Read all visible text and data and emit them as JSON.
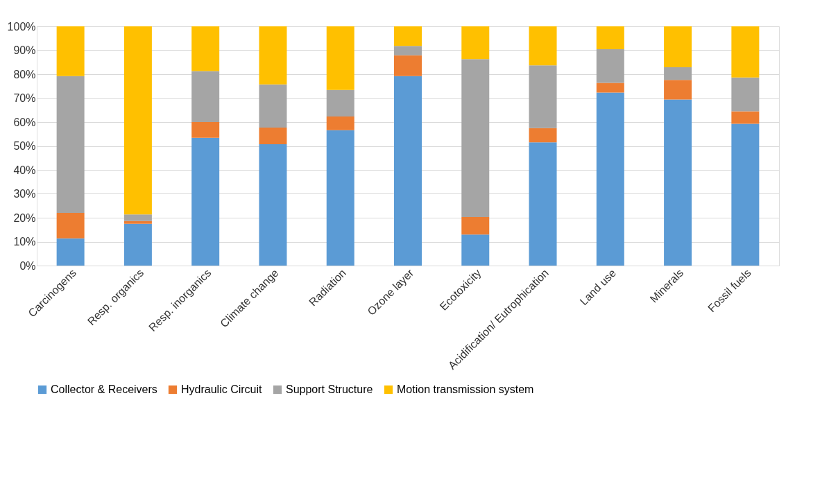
{
  "chart_data": {
    "type": "bar",
    "stacked": true,
    "categories": [
      "Carcinogens",
      "Resp. organics",
      "Resp. inorganics",
      "Climate change",
      "Radiation",
      "Ozone layer",
      "Ecotoxicity",
      "Acidification/ Eutrophication",
      "Land use",
      "Minerals",
      "Fossil fuels"
    ],
    "series": [
      {
        "name": "Collector & Receivers",
        "color": "#5b9bd5",
        "values": [
          11.4,
          17.5,
          53.4,
          50.7,
          56.6,
          79.2,
          13.0,
          51.5,
          72.3,
          69.4,
          59.3
        ]
      },
      {
        "name": "Hydraulic Circuit",
        "color": "#ed7d31",
        "values": [
          10.6,
          1.1,
          6.6,
          7.0,
          5.7,
          8.7,
          7.3,
          6.0,
          4.1,
          8.2,
          5.2
        ]
      },
      {
        "name": "Support Structure",
        "color": "#a5a5a5",
        "values": [
          57.2,
          2.8,
          21.3,
          18.0,
          11.1,
          3.9,
          66.0,
          26.2,
          14.0,
          5.3,
          14.1
        ]
      },
      {
        "name": "Motion transmission system",
        "color": "#ffc000",
        "values": [
          20.8,
          78.6,
          18.7,
          24.3,
          26.6,
          8.2,
          13.7,
          16.3,
          9.6,
          17.1,
          21.4
        ]
      }
    ],
    "ylim": [
      0,
      100
    ],
    "yticks": [
      {
        "value": 0,
        "label": "0%"
      },
      {
        "value": 10,
        "label": "10%"
      },
      {
        "value": 20,
        "label": "20%"
      },
      {
        "value": 30,
        "label": "30%"
      },
      {
        "value": 40,
        "label": "40%"
      },
      {
        "value": 50,
        "label": "50%"
      },
      {
        "value": 60,
        "label": "60%"
      },
      {
        "value": 70,
        "label": "70%"
      },
      {
        "value": 80,
        "label": "80%"
      },
      {
        "value": 90,
        "label": "90%"
      },
      {
        "value": 100,
        "label": "100%"
      }
    ],
    "grid": "y",
    "legend": "bottom"
  }
}
